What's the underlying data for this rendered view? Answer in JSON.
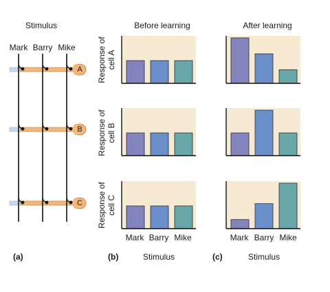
{
  "panel_a": {
    "title": "Stimulus",
    "inputs": [
      "Mark",
      "Barry",
      "Mike"
    ],
    "cells": [
      "A",
      "B",
      "C"
    ],
    "label": "(a)"
  },
  "panel_b": {
    "title": "Before learning",
    "label": "(b)",
    "xlabel": "Stimulus"
  },
  "panel_c": {
    "title": "After learning",
    "label": "(c)",
    "xlabel": "Stimulus"
  },
  "row_labels": [
    [
      "Response of",
      "cell A"
    ],
    [
      "Response of",
      "cell B"
    ],
    [
      "Response of",
      "cell C"
    ]
  ],
  "colors": {
    "plot_bg": "#f6ead3",
    "bar_mark": "#8383bd",
    "bar_barry": "#6a8fc9",
    "bar_mike": "#6aa7a8",
    "axon": "#f2b77a",
    "axon_edge": "#b97a3a",
    "input_line": "#c6d6ee"
  },
  "chart_data": [
    {
      "type": "bar",
      "panel": "before",
      "cell": "A",
      "categories": [
        "Mark",
        "Barry",
        "Mike"
      ],
      "values": [
        1,
        1,
        1
      ],
      "ylim": [
        0,
        2
      ]
    },
    {
      "type": "bar",
      "panel": "before",
      "cell": "B",
      "categories": [
        "Mark",
        "Barry",
        "Mike"
      ],
      "values": [
        1,
        1,
        1
      ],
      "ylim": [
        0,
        2
      ]
    },
    {
      "type": "bar",
      "panel": "before",
      "cell": "C",
      "categories": [
        "Mark",
        "Barry",
        "Mike"
      ],
      "values": [
        1,
        1,
        1
      ],
      "ylim": [
        0,
        2
      ]
    },
    {
      "type": "bar",
      "panel": "after",
      "cell": "A",
      "categories": [
        "Mark",
        "Barry",
        "Mike"
      ],
      "values": [
        2,
        1.3,
        0.6
      ],
      "ylim": [
        0,
        2
      ]
    },
    {
      "type": "bar",
      "panel": "after",
      "cell": "B",
      "categories": [
        "Mark",
        "Barry",
        "Mike"
      ],
      "values": [
        1,
        2,
        1
      ],
      "ylim": [
        0,
        2
      ]
    },
    {
      "type": "bar",
      "panel": "after",
      "cell": "C",
      "categories": [
        "Mark",
        "Barry",
        "Mike"
      ],
      "values": [
        0.4,
        1.1,
        2
      ],
      "ylim": [
        0,
        2
      ]
    }
  ]
}
